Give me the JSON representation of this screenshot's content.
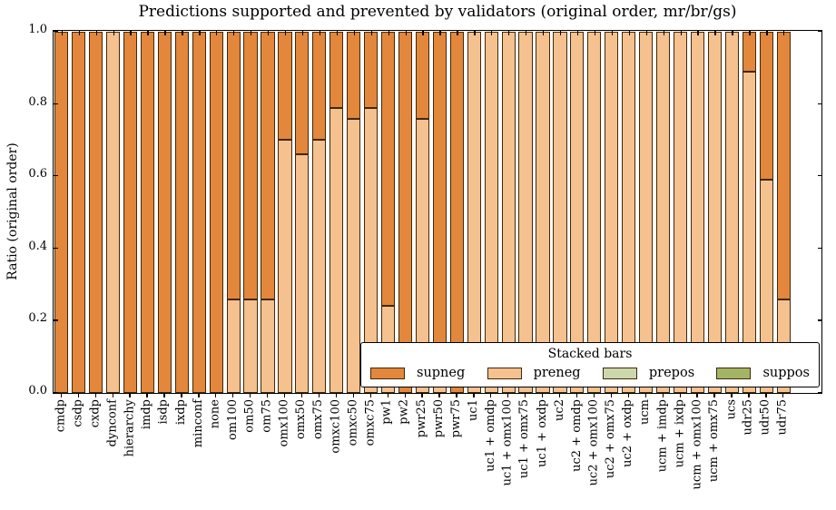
{
  "chart_data": {
    "type": "bar",
    "stacked": true,
    "title": "Predictions supported and prevented by validators (original order, mr/br/gs)",
    "xlabel": "",
    "ylabel": "Ratio (original order)",
    "ylim": [
      0.0,
      1.0
    ],
    "yticks": [
      0.0,
      0.2,
      0.4,
      0.6,
      0.8,
      1.0
    ],
    "ytick_labels": [
      "0.0",
      "0.2",
      "0.4",
      "0.6",
      "0.8",
      "1.0"
    ],
    "grid": false,
    "bar_edge_color": "#40280a",
    "stack_order_bottom_to_top": [
      "preneg",
      "prepos",
      "suppos",
      "supneg"
    ],
    "legend": {
      "title": "Stacked bars",
      "position": "lower right",
      "entries": [
        {
          "label": "supneg",
          "color": "#E2873B"
        },
        {
          "label": "preneg",
          "color": "#F4C18F"
        },
        {
          "label": "prepos",
          "color": "#CCD8AB"
        },
        {
          "label": "suppos",
          "color": "#A3B464"
        }
      ]
    },
    "categories": [
      "cmdp",
      "csdp",
      "cxdp",
      "dynconf",
      "hierarchy",
      "imdp",
      "isdp",
      "ixdp",
      "minconf",
      "none",
      "om100",
      "om50",
      "om75",
      "omx100",
      "omx50",
      "omx75",
      "omxc100",
      "omxc50",
      "omxc75",
      "pw1",
      "pw2",
      "pwr25",
      "pwr50",
      "pwr75",
      "uc1",
      "uc1 + omdp",
      "uc1 + omx100",
      "uc1 + omx75",
      "uc1 + oxdp",
      "uc2",
      "uc2 + omdp",
      "uc2 + omx100",
      "uc2 + omx75",
      "uc2 + oxdp",
      "ucm",
      "ucm + imdp",
      "ucm + ixdp",
      "ucm + omx100",
      "ucm + omx75",
      "ucs",
      "udr25",
      "udr50",
      "udr75"
    ],
    "series": [
      {
        "name": "supneg",
        "color": "#E2873B",
        "values": [
          1,
          1,
          1,
          0,
          1,
          1,
          1,
          1,
          1,
          1,
          0.74,
          0.74,
          0.74,
          0.3,
          0.34,
          0.3,
          0.21,
          0.24,
          0.21,
          0.76,
          1,
          0.24,
          0.92,
          1,
          0,
          0,
          0,
          0,
          0,
          0,
          0,
          0,
          0,
          0,
          0,
          0,
          0,
          0,
          0,
          0,
          0.11,
          0.41,
          0.74
        ]
      },
      {
        "name": "preneg",
        "color": "#F4C18F",
        "values": [
          0,
          0,
          0,
          1,
          0,
          0,
          0,
          0,
          0,
          0,
          0.26,
          0.26,
          0.26,
          0.7,
          0.66,
          0.7,
          0.79,
          0.76,
          0.79,
          0.24,
          0,
          0.76,
          0.08,
          0,
          1,
          1,
          1,
          1,
          1,
          1,
          1,
          1,
          1,
          1,
          1,
          1,
          1,
          1,
          1,
          1,
          0.89,
          0.59,
          0.26
        ]
      },
      {
        "name": "prepos",
        "color": "#CCD8AB",
        "values": [
          0,
          0,
          0,
          0,
          0,
          0,
          0,
          0,
          0,
          0,
          0,
          0,
          0,
          0,
          0,
          0,
          0,
          0,
          0,
          0,
          0,
          0,
          0,
          0,
          0,
          0,
          0,
          0,
          0,
          0,
          0,
          0,
          0,
          0,
          0,
          0,
          0,
          0,
          0,
          0,
          0,
          0,
          0
        ]
      },
      {
        "name": "suppos",
        "color": "#A3B464",
        "values": [
          0,
          0,
          0,
          0,
          0,
          0,
          0,
          0,
          0,
          0,
          0,
          0,
          0,
          0,
          0,
          0,
          0,
          0,
          0,
          0,
          0,
          0,
          0,
          0,
          0,
          0,
          0,
          0,
          0,
          0,
          0,
          0,
          0,
          0,
          0,
          0,
          0,
          0,
          0,
          0,
          0,
          0,
          0
        ]
      }
    ]
  }
}
